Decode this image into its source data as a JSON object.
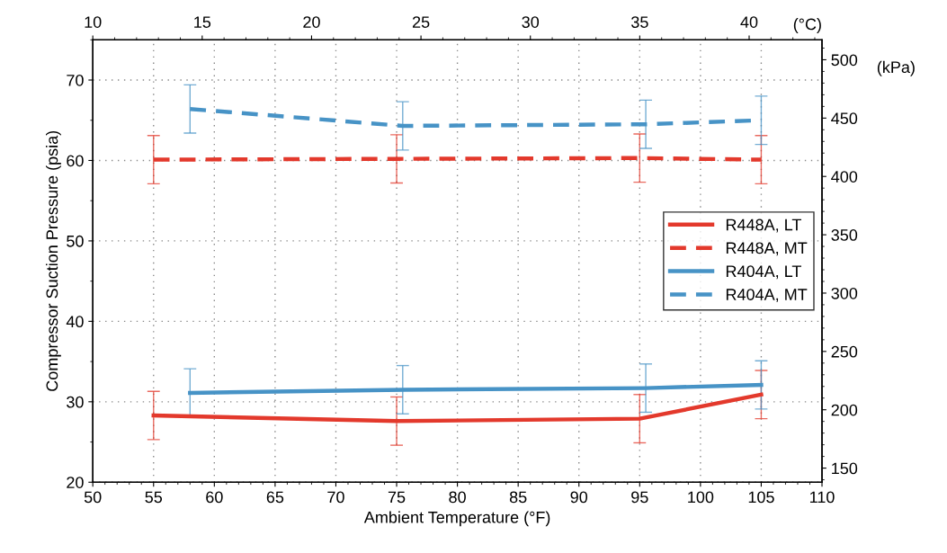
{
  "chart_data": {
    "type": "line",
    "xlabel": "Ambient Temperature (°F)",
    "ylabel": "Compressor Suction Pressure (psia)",
    "x2label": "(°C)",
    "y2label": "(kPa)",
    "xlim": [
      50,
      110
    ],
    "xticks": [
      50,
      55,
      60,
      65,
      70,
      75,
      80,
      85,
      90,
      95,
      100,
      105,
      110
    ],
    "ylim": [
      20,
      75
    ],
    "yticks": [
      20,
      30,
      40,
      50,
      60,
      70
    ],
    "x2lim": [
      10,
      43.33
    ],
    "x2ticks": [
      10,
      15,
      20,
      25,
      30,
      35,
      40
    ],
    "y2lim": [
      137.9,
      517.1
    ],
    "y2ticks": [
      150,
      200,
      250,
      300,
      350,
      400,
      450,
      500
    ],
    "grid": true,
    "legend": "right",
    "marker": "none",
    "series": [
      {
        "name": "R448A, LT",
        "color": "#e3392c",
        "line_style": "solid",
        "x": [
          55,
          75,
          95,
          105
        ],
        "values": [
          28.3,
          27.6,
          27.9,
          30.9
        ],
        "errors": [
          3,
          3,
          3,
          3
        ]
      },
      {
        "name": "R448A, MT",
        "color": "#e3392c",
        "line_style": "dashed",
        "x": [
          55,
          75,
          95,
          105
        ],
        "values": [
          60.1,
          60.2,
          60.3,
          60.1
        ],
        "errors": [
          3,
          3,
          3,
          3
        ]
      },
      {
        "name": "R404A, LT",
        "color": "#4793c6",
        "line_style": "solid",
        "x": [
          58,
          75.5,
          95.5,
          105
        ],
        "values": [
          31.1,
          31.5,
          31.7,
          32.1
        ],
        "errors": [
          3,
          3,
          3,
          3
        ]
      },
      {
        "name": "R404A, MT",
        "color": "#4793c6",
        "line_style": "dashed",
        "x": [
          58,
          75.5,
          95.5,
          105
        ],
        "values": [
          66.4,
          64.3,
          64.5,
          65.0
        ],
        "errors": [
          3,
          3,
          3,
          3
        ]
      }
    ]
  }
}
